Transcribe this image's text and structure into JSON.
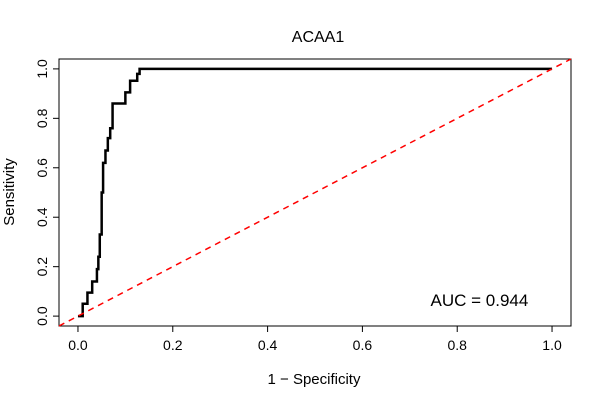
{
  "chart_data": {
    "type": "line",
    "title": "ACAA1",
    "xlabel": "1 − Specificity",
    "ylabel": "Sensitivity",
    "xlim": [
      -0.04,
      1.04
    ],
    "ylim": [
      -0.04,
      1.04
    ],
    "xticks": [
      0.0,
      0.2,
      0.4,
      0.6,
      0.8,
      1.0
    ],
    "xtick_labels": [
      "0.0",
      "0.2",
      "0.4",
      "0.6",
      "0.8",
      "1.0"
    ],
    "yticks": [
      0.0,
      0.2,
      0.4,
      0.6,
      0.8,
      1.0
    ],
    "ytick_labels": [
      "0.0",
      "0.2",
      "0.4",
      "0.6",
      "0.8",
      "1.0"
    ],
    "grid": false,
    "series": [
      {
        "color": "#000000",
        "style": "solid",
        "x": [
          0.0,
          0.005,
          0.01,
          0.01,
          0.015,
          0.02,
          0.02,
          0.03,
          0.03,
          0.04,
          0.04,
          0.043,
          0.043,
          0.046,
          0.046,
          0.05,
          0.05,
          0.053,
          0.053,
          0.058,
          0.058,
          0.063,
          0.063,
          0.068,
          0.068,
          0.073,
          0.073,
          0.09,
          0.09,
          0.1,
          0.1,
          0.11,
          0.11,
          0.12,
          0.12,
          0.125,
          0.125,
          0.13,
          0.13,
          1.0
        ],
        "y": [
          0.0,
          0.0,
          0.0,
          0.05,
          0.05,
          0.05,
          0.095,
          0.095,
          0.14,
          0.14,
          0.19,
          0.19,
          0.24,
          0.24,
          0.33,
          0.33,
          0.5,
          0.5,
          0.62,
          0.62,
          0.67,
          0.67,
          0.72,
          0.72,
          0.76,
          0.76,
          0.86,
          0.86,
          0.86,
          0.86,
          0.905,
          0.905,
          0.952,
          0.952,
          0.952,
          0.952,
          0.98,
          0.98,
          1.0,
          1.0
        ]
      },
      {
        "color": "#ff0000",
        "style": "dashed",
        "x": [
          -0.04,
          1.04
        ],
        "y": [
          -0.04,
          1.04
        ]
      }
    ],
    "annotations": [
      {
        "text": "AUC = 0.944",
        "x": 0.95,
        "y": 0.04,
        "anchor": "end"
      }
    ]
  }
}
